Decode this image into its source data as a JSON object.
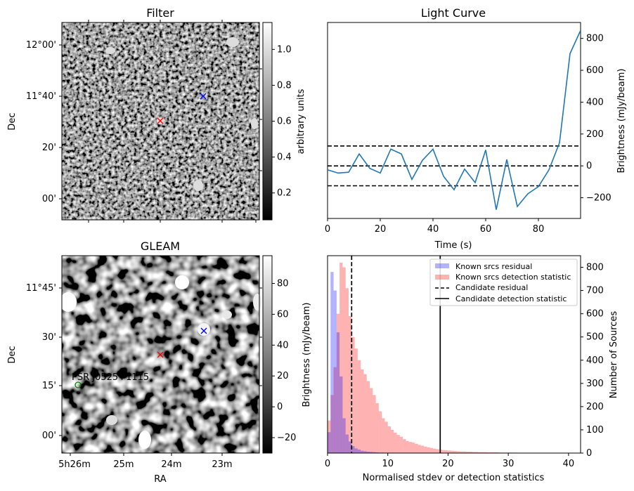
{
  "figure": {
    "panels": {
      "filter": {
        "title": "Filter",
        "ylabel": "Dec",
        "dec_ticks": [
          "12°00'",
          "11°40'",
          "20'",
          "00'"
        ],
        "colorbar_label": "arbitrary units",
        "colorbar_ticks": [
          "1.0",
          "0.8",
          "0.6",
          "0.4",
          "0.2"
        ],
        "colorbar_range": [
          0.05,
          1.15
        ],
        "markers": [
          {
            "symbol": "x",
            "color": "#ff0000",
            "name": "candidate"
          },
          {
            "symbol": "x",
            "color": "#0000ff",
            "name": "known source"
          }
        ]
      },
      "gleam": {
        "title": "GLEAM",
        "xlabel": "RA",
        "ylabel": "Dec",
        "ra_ticks": [
          "5h26m",
          "25m",
          "24m",
          "23m"
        ],
        "dec_ticks": [
          "11°45'",
          "30'",
          "15'",
          "00'"
        ],
        "colorbar_label": "Brightness (mJy/beam)",
        "colorbar_ticks": [
          "80",
          "60",
          "40",
          "20",
          "0",
          "−20"
        ],
        "colorbar_range": [
          -30,
          98
        ],
        "source_label": "PSR J0525+1115",
        "source_color": "#008000"
      }
    }
  },
  "chart_data": [
    {
      "type": "line",
      "title": "Light Curve",
      "xlabel": "Time (s)",
      "ylabel": "Brightness (mJy/beam)",
      "xlim": [
        0,
        96
      ],
      "ylim": [
        -330,
        900
      ],
      "x_ticks": [
        0,
        20,
        40,
        60,
        80
      ],
      "y_ticks": [
        -200,
        0,
        200,
        400,
        600,
        800
      ],
      "color": "#1f77b4",
      "x": [
        0,
        4,
        8,
        12,
        16,
        20,
        24,
        28,
        32,
        36,
        40,
        44,
        48,
        52,
        56,
        60,
        64,
        68,
        72,
        76,
        80,
        84,
        88,
        92,
        96
      ],
      "y": [
        -25,
        -45,
        -40,
        75,
        -15,
        -45,
        105,
        75,
        -85,
        35,
        105,
        -65,
        -150,
        -20,
        -105,
        100,
        -275,
        40,
        -255,
        -175,
        -130,
        -25,
        145,
        705,
        850
      ],
      "hlines": [
        125,
        0,
        -125
      ],
      "hline_style": "dashed black"
    },
    {
      "type": "bar",
      "subtype": "histogram",
      "xlabel": "Normalised stdev or detection statistics",
      "ylabel": "Number of Sources",
      "xlim": [
        0,
        42
      ],
      "ylim": [
        0,
        850
      ],
      "x_ticks": [
        0,
        10,
        20,
        30,
        40
      ],
      "y_ticks": [
        0,
        100,
        200,
        300,
        400,
        500,
        600,
        700,
        800
      ],
      "bin_width": 0.5,
      "legend_position": "top-right",
      "series": [
        {
          "name": "Known srcs residual",
          "color": "#0000ff",
          "alpha": 0.3,
          "bin_start": 0,
          "values": [
            90,
            780,
            700,
            520,
            330,
            150,
            80,
            50,
            30,
            20,
            15,
            10,
            8,
            6,
            5,
            4,
            3,
            2,
            2,
            1
          ]
        },
        {
          "name": "Known srcs detection statistic",
          "color": "#ff0000",
          "alpha": 0.3,
          "bin_start": 0,
          "values": [
            140,
            250,
            370,
            600,
            820,
            800,
            710,
            590,
            500,
            450,
            400,
            360,
            340,
            310,
            280,
            250,
            215,
            180,
            150,
            135,
            115,
            100,
            88,
            78,
            70,
            60,
            52,
            48,
            45,
            40,
            35,
            32,
            28,
            25,
            22,
            19,
            17,
            15,
            13,
            12,
            11,
            10,
            9,
            8,
            7,
            7,
            6,
            6,
            5,
            5,
            4,
            4,
            4,
            3,
            3,
            3,
            3,
            2,
            2,
            2,
            2,
            2,
            2,
            1,
            1,
            1,
            1,
            1,
            1,
            1,
            1,
            1,
            1,
            1,
            1,
            1,
            1,
            1,
            1,
            1
          ]
        }
      ],
      "vlines": [
        {
          "name": "Candidate residual",
          "x": 4.0,
          "style": "dashed",
          "color": "#000000"
        },
        {
          "name": "Candidate detection statistic",
          "x": 18.7,
          "style": "solid",
          "color": "#000000"
        }
      ]
    }
  ]
}
